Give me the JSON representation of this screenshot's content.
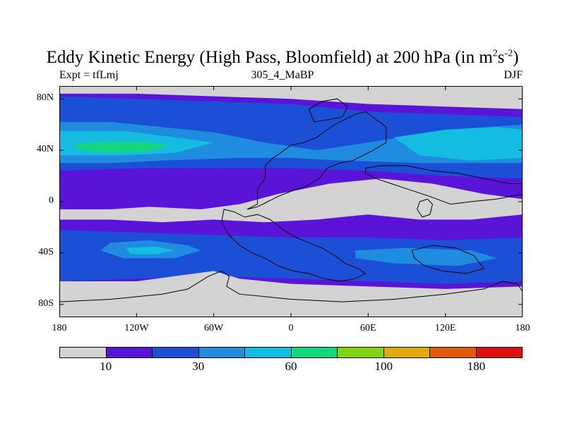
{
  "header": {
    "title_main": "Eddy Kinetic Energy (High Pass, Bloomfield) at 200 hPa (in m",
    "title_sup1": "2",
    "title_s": "s",
    "title_sup2": "-2",
    "title_close": ")",
    "left_label": "Expt = tfLmj",
    "center_label": "305_4_MaBP",
    "right_label": "DJF"
  },
  "chart_data": {
    "type": "filled-contour-map",
    "title": "Eddy Kinetic Energy (High Pass, Bloomfield) at 200 hPa (in m^2 s^-2)",
    "experiment": "tfLmj",
    "run": "305_4_MaBP",
    "season": "DJF",
    "xlim": [
      -180,
      180
    ],
    "ylim": [
      -90,
      90
    ],
    "x_ticks": [
      {
        "value": -180,
        "label": "180"
      },
      {
        "value": -120,
        "label": "120W"
      },
      {
        "value": -60,
        "label": "60W"
      },
      {
        "value": 0,
        "label": "0"
      },
      {
        "value": 60,
        "label": "60E"
      },
      {
        "value": 120,
        "label": "120E"
      },
      {
        "value": 180,
        "label": "180"
      }
    ],
    "y_ticks": [
      {
        "value": 80,
        "label": "80N"
      },
      {
        "value": 40,
        "label": "40N"
      },
      {
        "value": 0,
        "label": "0"
      },
      {
        "value": -40,
        "label": "40S"
      },
      {
        "value": -80,
        "label": "80S"
      }
    ],
    "levels": [
      10,
      20,
      30,
      45,
      60,
      80,
      100,
      140,
      180
    ],
    "colorbar_labels": [
      "10",
      "30",
      "60",
      "100",
      "180"
    ],
    "colorbar_label_levels": [
      10,
      30,
      60,
      100,
      180
    ],
    "colors": [
      "#d3d3d3",
      "#5a14d8",
      "#1b4fd6",
      "#1f8ce0",
      "#13bce0",
      "#15d680",
      "#80d414",
      "#e0aa10",
      "#e05a0a",
      "#e01010"
    ],
    "regions": [
      {
        "name": "nh-storm-track-band",
        "band": 2,
        "points": [
          [
            -180,
            82
          ],
          [
            -120,
            80
          ],
          [
            -60,
            78
          ],
          [
            0,
            76
          ],
          [
            60,
            70
          ],
          [
            120,
            68
          ],
          [
            180,
            66
          ],
          [
            180,
            18
          ],
          [
            120,
            20
          ],
          [
            60,
            24
          ],
          [
            0,
            26
          ],
          [
            -60,
            26
          ],
          [
            -120,
            26
          ],
          [
            -180,
            24
          ]
        ]
      },
      {
        "name": "nh-pacific-jet-core",
        "band": 3,
        "points": [
          [
            -180,
            62
          ],
          [
            -140,
            62
          ],
          [
            -100,
            58
          ],
          [
            -60,
            54
          ],
          [
            -20,
            46
          ],
          [
            20,
            40
          ],
          [
            60,
            46
          ],
          [
            120,
            56
          ],
          [
            180,
            60
          ],
          [
            180,
            30
          ],
          [
            140,
            30
          ],
          [
            100,
            30
          ],
          [
            40,
            32
          ],
          [
            0,
            34
          ],
          [
            -40,
            34
          ],
          [
            -100,
            32
          ],
          [
            -140,
            30
          ],
          [
            -180,
            30
          ]
        ]
      },
      {
        "name": "nh-jet-maximum",
        "band": 4,
        "points": [
          [
            -180,
            55
          ],
          [
            -130,
            55
          ],
          [
            -90,
            50
          ],
          [
            -60,
            46
          ],
          [
            -90,
            38
          ],
          [
            -130,
            36
          ],
          [
            -180,
            36
          ]
        ]
      },
      {
        "name": "nh-atlantic-maximum",
        "band": 4,
        "points": [
          [
            80,
            50
          ],
          [
            120,
            56
          ],
          [
            160,
            58
          ],
          [
            180,
            56
          ],
          [
            180,
            34
          ],
          [
            140,
            32
          ],
          [
            100,
            36
          ]
        ]
      },
      {
        "name": "nh-green-core",
        "band": 5,
        "points": [
          [
            -168,
            45
          ],
          [
            -140,
            47
          ],
          [
            -110,
            46
          ],
          [
            -95,
            44
          ],
          [
            -110,
            39
          ],
          [
            -140,
            38
          ],
          [
            -165,
            40
          ]
        ]
      },
      {
        "name": "sh-storm-track-band",
        "band": 2,
        "points": [
          [
            -180,
            -22
          ],
          [
            -120,
            -24
          ],
          [
            -60,
            -26
          ],
          [
            0,
            -28
          ],
          [
            60,
            -28
          ],
          [
            120,
            -30
          ],
          [
            180,
            -28
          ],
          [
            180,
            -62
          ],
          [
            120,
            -64
          ],
          [
            60,
            -62
          ],
          [
            0,
            -60
          ],
          [
            -60,
            -58
          ],
          [
            -120,
            -60
          ],
          [
            -180,
            -62
          ]
        ]
      },
      {
        "name": "sh-pacific-core",
        "band": 3,
        "points": [
          [
            -140,
            -32
          ],
          [
            -110,
            -30
          ],
          [
            -80,
            -34
          ],
          [
            -70,
            -38
          ],
          [
            -90,
            -44
          ],
          [
            -130,
            -44
          ],
          [
            -148,
            -38
          ]
        ]
      },
      {
        "name": "sh-pacific-inner",
        "band": 4,
        "points": [
          [
            -128,
            -36
          ],
          [
            -105,
            -35
          ],
          [
            -90,
            -38
          ],
          [
            -105,
            -41
          ],
          [
            -125,
            -41
          ]
        ]
      },
      {
        "name": "sh-indian-core",
        "band": 3,
        "points": [
          [
            50,
            -38
          ],
          [
            90,
            -36
          ],
          [
            140,
            -38
          ],
          [
            160,
            -44
          ],
          [
            130,
            -50
          ],
          [
            80,
            -48
          ],
          [
            50,
            -44
          ]
        ]
      },
      {
        "name": "tropical-gray",
        "band": 0,
        "points": [
          [
            -110,
            -4
          ],
          [
            -70,
            -6
          ],
          [
            -40,
            -2
          ],
          [
            -10,
            6
          ],
          [
            30,
            14
          ],
          [
            70,
            18
          ],
          [
            110,
            14
          ],
          [
            150,
            6
          ],
          [
            180,
            2
          ],
          [
            180,
            -10
          ],
          [
            140,
            -14
          ],
          [
            100,
            -14
          ],
          [
            60,
            -10
          ],
          [
            20,
            -14
          ],
          [
            -20,
            -16
          ],
          [
            -60,
            -14
          ],
          [
            -100,
            -16
          ],
          [
            -140,
            -14
          ],
          [
            -180,
            -14
          ],
          [
            -180,
            -6
          ],
          [
            -140,
            -6
          ]
        ]
      },
      {
        "name": "antarctic-gray",
        "band": 0,
        "points": [
          [
            -180,
            -62
          ],
          [
            -120,
            -62
          ],
          [
            -60,
            -54
          ],
          [
            -40,
            -60
          ],
          [
            0,
            -64
          ],
          [
            60,
            -66
          ],
          [
            120,
            -68
          ],
          [
            180,
            -66
          ],
          [
            180,
            -90
          ],
          [
            -180,
            -90
          ]
        ]
      },
      {
        "name": "arctic-gray",
        "band": 0,
        "points": [
          [
            -180,
            90
          ],
          [
            180,
            90
          ],
          [
            180,
            72
          ],
          [
            120,
            74
          ],
          [
            60,
            76
          ],
          [
            0,
            80
          ],
          [
            -60,
            82
          ],
          [
            -120,
            84
          ],
          [
            -180,
            84
          ]
        ]
      }
    ],
    "continents": [
      {
        "name": "paleo-north-america",
        "points": [
          [
            -34,
            -6
          ],
          [
            -26,
            -2
          ],
          [
            -26,
            10
          ],
          [
            -20,
            18
          ],
          [
            -20,
            28
          ],
          [
            -14,
            34
          ],
          [
            -8,
            38
          ],
          [
            0,
            44
          ],
          [
            10,
            46
          ],
          [
            20,
            50
          ],
          [
            28,
            56
          ],
          [
            34,
            60
          ],
          [
            42,
            64
          ],
          [
            50,
            68
          ],
          [
            58,
            70
          ],
          [
            66,
            64
          ],
          [
            74,
            58
          ],
          [
            74,
            46
          ],
          [
            64,
            40
          ],
          [
            56,
            36
          ],
          [
            48,
            32
          ],
          [
            38,
            30
          ],
          [
            28,
            26
          ],
          [
            22,
            18
          ],
          [
            12,
            12
          ],
          [
            0,
            8
          ],
          [
            -10,
            4
          ],
          [
            -18,
            0
          ],
          [
            -26,
            -4
          ]
        ]
      },
      {
        "name": "paleo-eurasia",
        "points": [
          [
            58,
            26
          ],
          [
            70,
            28
          ],
          [
            90,
            28
          ],
          [
            110,
            24
          ],
          [
            130,
            22
          ],
          [
            150,
            18
          ],
          [
            170,
            14
          ],
          [
            180,
            14
          ],
          [
            180,
            6
          ],
          [
            160,
            2
          ],
          [
            140,
            0
          ],
          [
            124,
            -2
          ],
          [
            108,
            4
          ],
          [
            90,
            10
          ],
          [
            78,
            14
          ],
          [
            66,
            18
          ],
          [
            58,
            22
          ]
        ]
      },
      {
        "name": "paleo-africa-southamerica",
        "points": [
          [
            -52,
            -6
          ],
          [
            -44,
            -8
          ],
          [
            -36,
            -12
          ],
          [
            -26,
            -10
          ],
          [
            -16,
            -14
          ],
          [
            -6,
            -22
          ],
          [
            4,
            -28
          ],
          [
            14,
            -32
          ],
          [
            24,
            -36
          ],
          [
            34,
            -42
          ],
          [
            42,
            -48
          ],
          [
            52,
            -52
          ],
          [
            58,
            -56
          ],
          [
            50,
            -60
          ],
          [
            38,
            -62
          ],
          [
            26,
            -60
          ],
          [
            14,
            -56
          ],
          [
            2,
            -54
          ],
          [
            -10,
            -50
          ],
          [
            -20,
            -44
          ],
          [
            -30,
            -40
          ],
          [
            -40,
            -34
          ],
          [
            -48,
            -26
          ],
          [
            -54,
            -16
          ]
        ]
      },
      {
        "name": "paleo-antarctica",
        "points": [
          [
            -180,
            -78
          ],
          [
            -140,
            -76
          ],
          [
            -100,
            -72
          ],
          [
            -80,
            -68
          ],
          [
            -64,
            -58
          ],
          [
            -54,
            -54
          ],
          [
            -48,
            -58
          ],
          [
            -50,
            -66
          ],
          [
            -40,
            -72
          ],
          [
            -20,
            -74
          ],
          [
            0,
            -76
          ],
          [
            40,
            -78
          ],
          [
            80,
            -76
          ],
          [
            120,
            -72
          ],
          [
            150,
            -68
          ],
          [
            164,
            -62
          ],
          [
            176,
            -64
          ],
          [
            180,
            -70
          ],
          [
            180,
            -90
          ],
          [
            -180,
            -90
          ]
        ]
      },
      {
        "name": "paleo-greenland",
        "points": [
          [
            18,
            62
          ],
          [
            30,
            64
          ],
          [
            40,
            66
          ],
          [
            44,
            74
          ],
          [
            36,
            80
          ],
          [
            24,
            78
          ],
          [
            14,
            72
          ]
        ]
      },
      {
        "name": "paleo-australia",
        "points": [
          [
            94,
            -38
          ],
          [
            110,
            -34
          ],
          [
            128,
            -36
          ],
          [
            142,
            -42
          ],
          [
            150,
            -52
          ],
          [
            136,
            -56
          ],
          [
            118,
            -54
          ],
          [
            104,
            -50
          ],
          [
            96,
            -44
          ]
        ]
      },
      {
        "name": "paleo-island-arc",
        "points": [
          [
            100,
            0
          ],
          [
            106,
            2
          ],
          [
            110,
            -2
          ],
          [
            108,
            -10
          ],
          [
            102,
            -12
          ],
          [
            98,
            -6
          ]
        ]
      }
    ]
  }
}
